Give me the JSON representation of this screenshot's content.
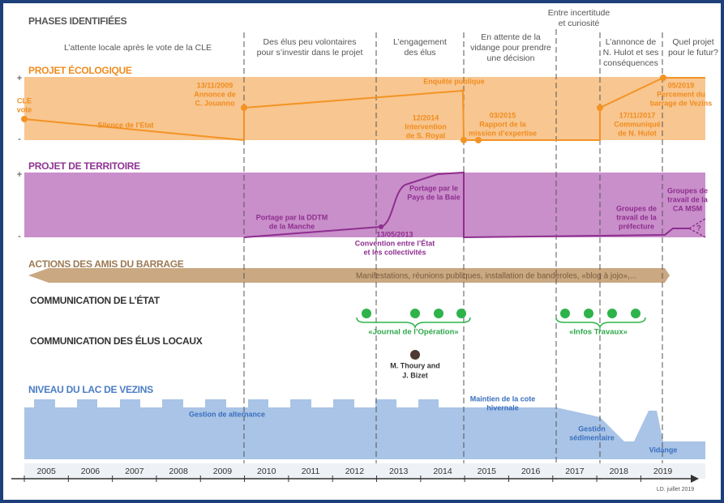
{
  "title": "PHASES IDENTIFIÉES",
  "phases": [
    [
      "L’attente locale après le vote de la CLE"
    ],
    [
      "Des élus peu volontaires",
      "pour s’investir dans le projet"
    ],
    [
      "L’engagement",
      "des élus"
    ],
    [
      "En attente de la",
      "vidange pour prendre",
      "une décision"
    ],
    [
      "Entre incertitude",
      "et curiosité"
    ],
    [
      "L’annonce de",
      "N. Hulot et ses",
      "conséquences"
    ],
    [
      "Quel projet",
      "pour le futur?"
    ]
  ],
  "plus": "+",
  "minus": "-",
  "eco": {
    "title": "PROJET ÉCOLOGIQUE",
    "labels": [
      [
        "CLE",
        "vote"
      ],
      [
        "13/11/2009",
        "Annonce de",
        "C. Jouanno"
      ],
      [
        "Silence de l’Etat"
      ],
      [
        "Enquête publique"
      ],
      [
        "12/2014",
        "Intervention",
        "de S. Royal"
      ],
      [
        "03/2015",
        "Rapport de la",
        "mission d’expertise"
      ],
      [
        "17/11/2017",
        "Communiqué",
        "de N. Hulot"
      ],
      [
        "05/2019",
        "Percement du",
        "barrage de Vezins"
      ]
    ]
  },
  "territoire": {
    "title": "PROJET DE TERRITOIRE",
    "labels": [
      [
        "Portage par la DDTM",
        "de la Manche"
      ],
      [
        "13/05/2013",
        "Convention entre l’État",
        "et les collectivités"
      ],
      [
        "Portage par le",
        "Pays de la Baie"
      ],
      [
        "Groupes de",
        "travail de la",
        "préfecture"
      ],
      [
        "Groupes de",
        "travail de la",
        "CA MSM"
      ],
      [
        "?"
      ]
    ]
  },
  "actions": {
    "title": "ACTIONS DES AMIS DU BARRAGE",
    "label": "Manifestations, réunions publiques, installation de banderoles, «blog à jojo»,..."
  },
  "etat": {
    "title": "COMMUNICATION DE L’ÉTAT",
    "labels": [
      "«Journal de l’Opération»",
      "«Infos Travaux»"
    ]
  },
  "elus": {
    "title": "COMMUNICATION DES ÉLUS LOCAUX",
    "label": [
      "M. Thoury and",
      "J. Bizet"
    ]
  },
  "lac": {
    "title": "NIVEAU DU LAC DE VEZINS",
    "labels": [
      [
        "Gestion de alternance"
      ],
      [
        "Maintien de la cote",
        "hivernale"
      ],
      [
        "Gestion",
        "sédimentaire"
      ],
      [
        "Vidange"
      ]
    ]
  },
  "years": [
    "2005",
    "2006",
    "2007",
    "2008",
    "2009",
    "2010",
    "2011",
    "2012",
    "2013",
    "2014",
    "2015",
    "2016",
    "2017",
    "2018",
    "2019"
  ],
  "credit": "LD. juillet 2019"
}
